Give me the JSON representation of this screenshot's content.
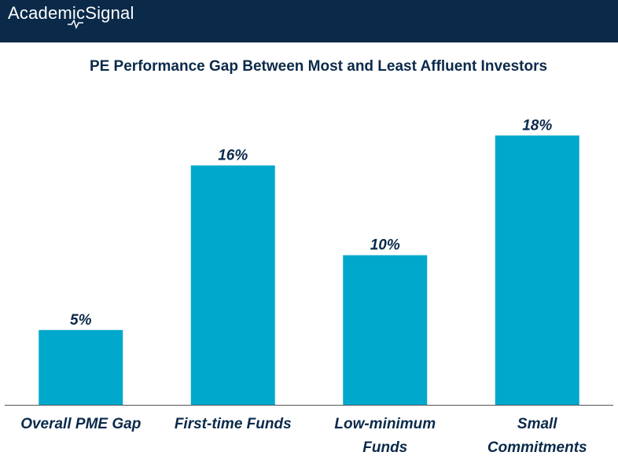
{
  "brand": {
    "logo_text_1": "Academic",
    "logo_text_2": "Signal",
    "header_color": "#0b2a4a"
  },
  "chart_data": {
    "type": "bar",
    "title": "PE Performance Gap Between Most and Least Affluent Investors",
    "categories": [
      [
        "Overall PME Gap"
      ],
      [
        "First-time Funds"
      ],
      [
        "Low-minimum",
        "Funds"
      ],
      [
        "Small",
        "Commitments"
      ]
    ],
    "values": [
      5,
      16,
      10,
      18
    ],
    "value_labels": [
      "5%",
      "16%",
      "10%",
      "18%"
    ],
    "ylim": [
      0,
      20
    ],
    "grid": false,
    "legend": "none",
    "bar_color": "#00a8cc",
    "xlabel": "",
    "ylabel": ""
  }
}
